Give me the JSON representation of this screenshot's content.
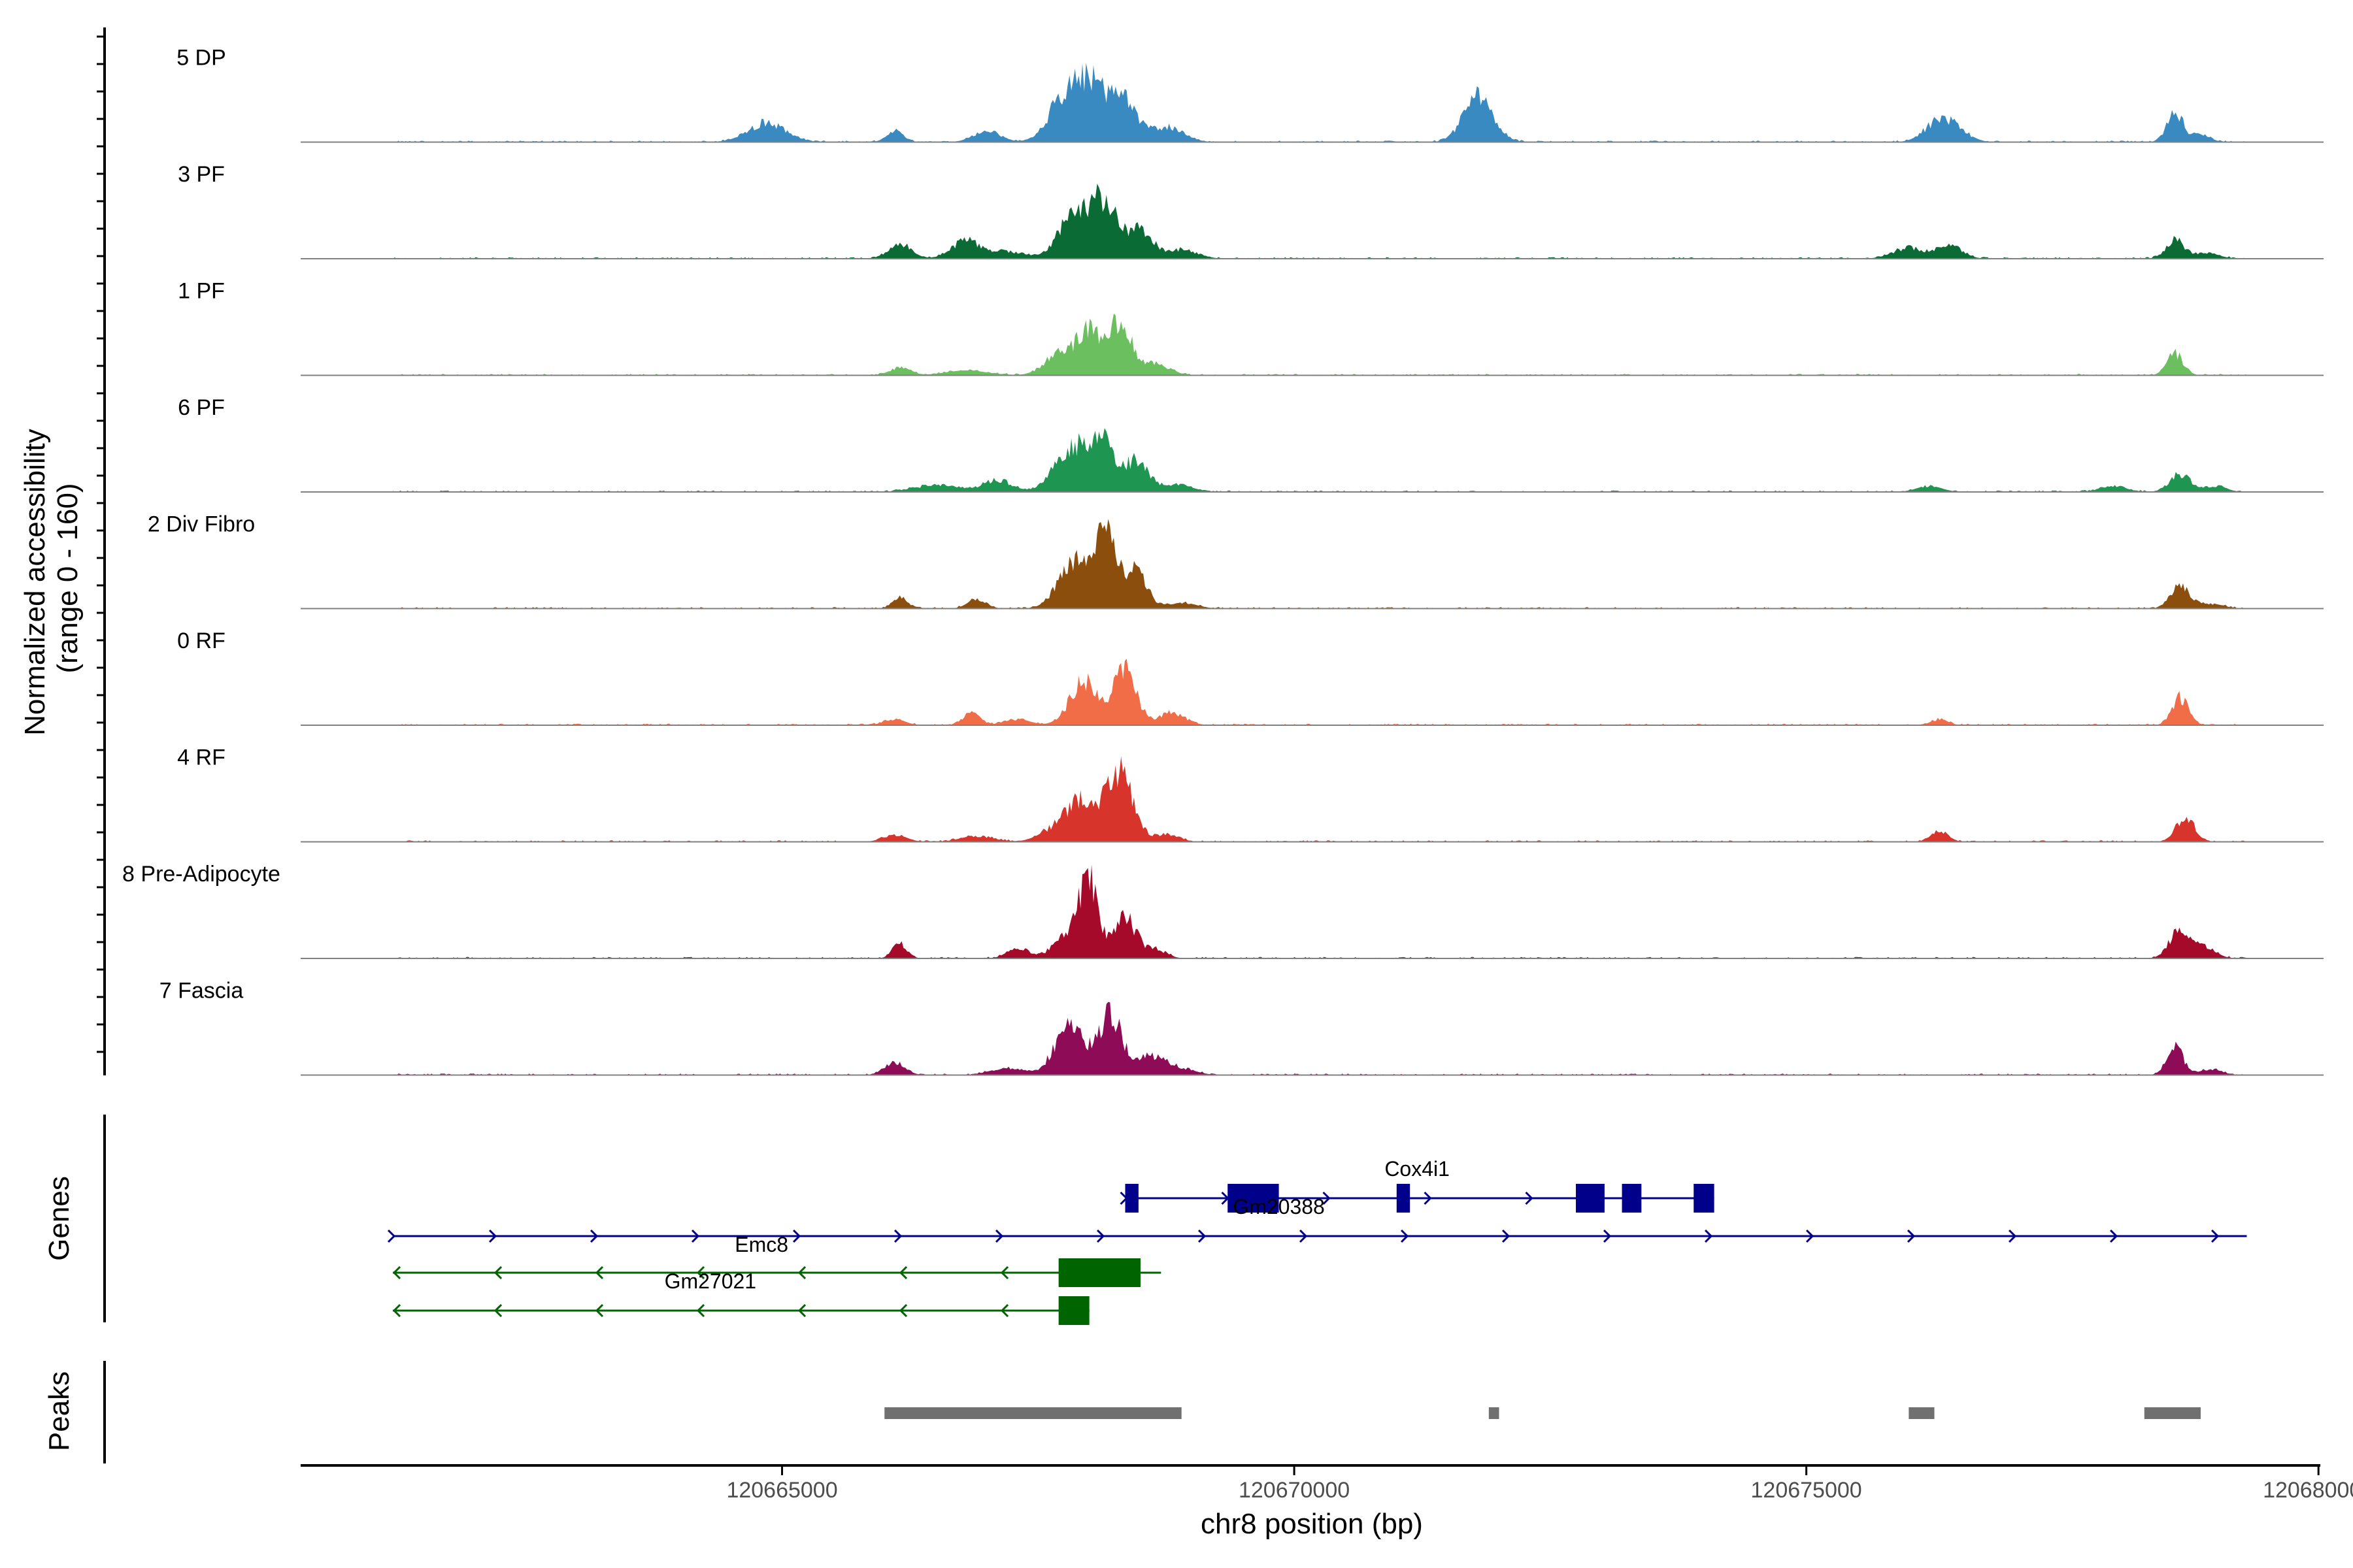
{
  "chart_data": {
    "type": "area",
    "title": "",
    "ylabel_line1": "Normalized accessibility",
    "ylabel_line2": "(range 0 - 160)",
    "ylim": [
      0,
      160
    ],
    "xlabel": "chr8 position (bp)",
    "xlim": [
      120660300,
      120680050
    ],
    "xticks": [
      120665000,
      120670000,
      120675000,
      120680000
    ],
    "xtick_labels": [
      "120665000",
      "120670000",
      "120675000",
      "120680000"
    ],
    "series": [
      {
        "name": "5 DP",
        "color": "#3A8AC2",
        "peaks": [
          [
            120664850,
            32,
            180
          ],
          [
            120666100,
            18,
            80
          ],
          [
            120667000,
            18,
            130
          ],
          [
            120667700,
            45,
            140
          ],
          [
            120668000,
            100,
            180
          ],
          [
            120668350,
            55,
            120
          ],
          [
            120668750,
            25,
            160
          ],
          [
            120671800,
            80,
            140
          ],
          [
            120676300,
            35,
            140
          ],
          [
            120676500,
            12,
            120
          ],
          [
            120678600,
            48,
            80
          ],
          [
            120678850,
            12,
            90
          ]
        ]
      },
      {
        "name": "3 PF",
        "color": "#0B6B34",
        "peaks": [
          [
            120666150,
            25,
            110
          ],
          [
            120666800,
            30,
            140
          ],
          [
            120667200,
            12,
            160
          ],
          [
            120667850,
            70,
            150
          ],
          [
            120668150,
            90,
            130
          ],
          [
            120668500,
            45,
            120
          ],
          [
            120668900,
            15,
            150
          ],
          [
            120676000,
            18,
            150
          ],
          [
            120676400,
            22,
            120
          ],
          [
            120678600,
            30,
            90
          ],
          [
            120678900,
            10,
            120
          ]
        ]
      },
      {
        "name": "1 PF",
        "color": "#6BBF5E",
        "peaks": [
          [
            120666150,
            12,
            100
          ],
          [
            120666800,
            8,
            200
          ],
          [
            120667700,
            35,
            140
          ],
          [
            120668000,
            70,
            120
          ],
          [
            120668300,
            85,
            110
          ],
          [
            120668650,
            20,
            130
          ],
          [
            120678600,
            35,
            80
          ]
        ]
      },
      {
        "name": "6 PF",
        "color": "#1E9550",
        "peaks": [
          [
            120666500,
            12,
            200
          ],
          [
            120667100,
            20,
            140
          ],
          [
            120667800,
            70,
            150
          ],
          [
            120668100,
            85,
            120
          ],
          [
            120668450,
            50,
            120
          ],
          [
            120668850,
            12,
            150
          ],
          [
            120676200,
            10,
            120
          ],
          [
            120678000,
            10,
            120
          ],
          [
            120678650,
            30,
            100
          ],
          [
            120679000,
            10,
            100
          ]
        ]
      },
      {
        "name": "2 Div Fibro",
        "color": "#8B4E0C",
        "peaks": [
          [
            120666150,
            18,
            70
          ],
          [
            120666900,
            15,
            90
          ],
          [
            120667850,
            75,
            150
          ],
          [
            120668150,
            120,
            110
          ],
          [
            120668450,
            60,
            110
          ],
          [
            120668900,
            10,
            140
          ],
          [
            120678650,
            40,
            90
          ],
          [
            120678950,
            8,
            120
          ]
        ]
      },
      {
        "name": "0 RF",
        "color": "#F06D48",
        "peaks": [
          [
            120666100,
            10,
            100
          ],
          [
            120666850,
            20,
            80
          ],
          [
            120667300,
            10,
            120
          ],
          [
            120667950,
            70,
            140
          ],
          [
            120668350,
            90,
            110
          ],
          [
            120668800,
            20,
            130
          ],
          [
            120676300,
            10,
            80
          ],
          [
            120678650,
            45,
            80
          ]
        ]
      },
      {
        "name": "4 RF",
        "color": "#D7352B",
        "peaks": [
          [
            120666100,
            12,
            110
          ],
          [
            120666900,
            10,
            150
          ],
          [
            120667700,
            25,
            160
          ],
          [
            120667950,
            60,
            140
          ],
          [
            120668300,
            110,
            130
          ],
          [
            120668750,
            12,
            120
          ],
          [
            120676300,
            18,
            80
          ],
          [
            120678700,
            40,
            90
          ]
        ]
      },
      {
        "name": "8 Pre-Adipocyte",
        "color": "#A50A2A",
        "peaks": [
          [
            120666150,
            25,
            70
          ],
          [
            120667300,
            18,
            100
          ],
          [
            120667800,
            40,
            140
          ],
          [
            120668000,
            120,
            90
          ],
          [
            120668350,
            65,
            110
          ],
          [
            120668650,
            15,
            100
          ],
          [
            120678650,
            50,
            100
          ],
          [
            120678900,
            18,
            100
          ]
        ]
      },
      {
        "name": "7 Fascia",
        "color": "#8E0B58",
        "peaks": [
          [
            120666100,
            20,
            100
          ],
          [
            120667200,
            12,
            160
          ],
          [
            120667800,
            80,
            140
          ],
          [
            120668200,
            95,
            120
          ],
          [
            120668600,
            30,
            140
          ],
          [
            120668900,
            10,
            140
          ],
          [
            120678600,
            45,
            80
          ],
          [
            120678950,
            10,
            100
          ]
        ]
      }
    ],
    "genes_panel_label": "Genes",
    "genes": [
      {
        "name": "Cox4i1",
        "strand": "+",
        "color": "#00008B",
        "start": 120668350,
        "end": 120674100,
        "label_pos": 120671200,
        "exons": [
          [
            120668350,
            120668480
          ],
          [
            120669350,
            120669850
          ],
          [
            120671000,
            120671130
          ],
          [
            120672750,
            120673030
          ],
          [
            120673200,
            120673390
          ],
          [
            120673900,
            120674100
          ]
        ]
      },
      {
        "name": "Gm20388",
        "strand": "+",
        "color": "#00008B",
        "start": 120661200,
        "end": 120679300,
        "label_pos": 120669850,
        "exons": []
      },
      {
        "name": "Emc8",
        "strand": "-",
        "color": "#006400",
        "start": 120661200,
        "end": 120668700,
        "label_pos": 120664800,
        "exons": [
          [
            120667700,
            120668500
          ]
        ]
      },
      {
        "name": "Gm27021",
        "strand": "-",
        "color": "#006400",
        "start": 120661200,
        "end": 120668000,
        "label_pos": 120664300,
        "exons": [
          [
            120667700,
            120668000
          ]
        ]
      }
    ],
    "peaks_panel_label": "Peaks",
    "peaks_color": "#707070",
    "peak_regions": [
      [
        120666000,
        120668900
      ],
      [
        120671900,
        120672000
      ],
      [
        120676000,
        120676250
      ],
      [
        120678300,
        120678850
      ]
    ]
  }
}
